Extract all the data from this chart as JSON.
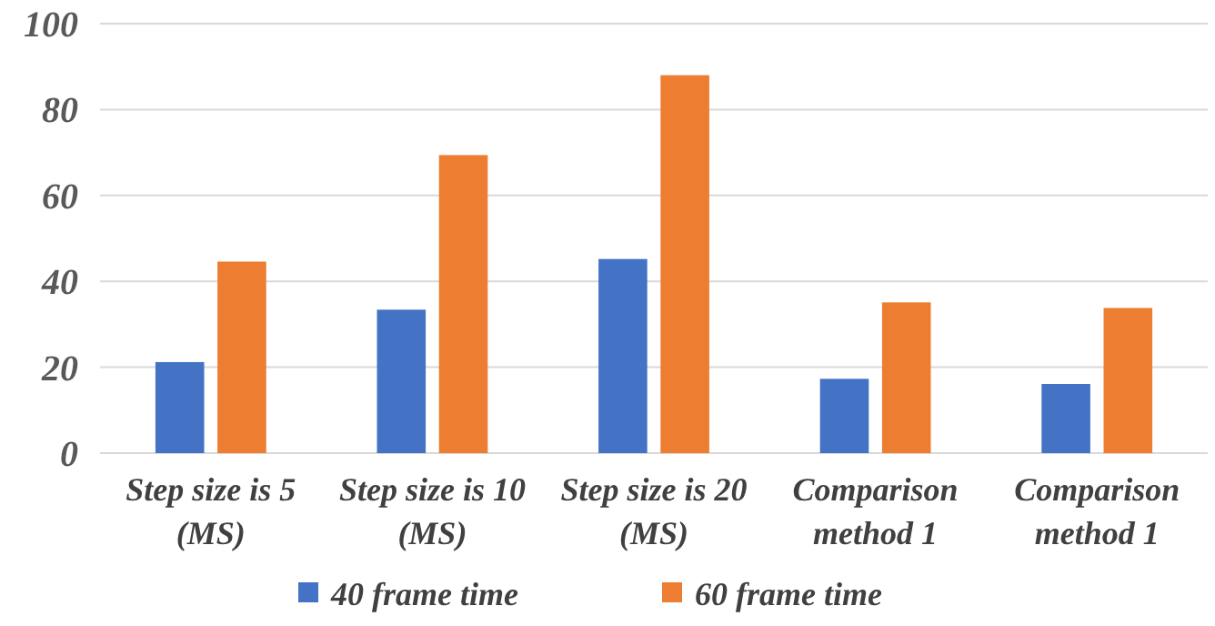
{
  "chart_data": {
    "type": "bar",
    "categories": [
      "Step size is 5 (MS)",
      "Step size is 10 (MS)",
      "Step size is 20 (MS)",
      "Comparison method 1",
      "Comparison method 1"
    ],
    "series": [
      {
        "name": "40 frame time",
        "color": "#4472c4",
        "values": [
          21.2,
          33.4,
          45.2,
          17.3,
          16.1
        ]
      },
      {
        "name": "60 frame time",
        "color": "#ed7d31",
        "values": [
          44.6,
          69.4,
          88.0,
          35.1,
          33.8
        ]
      }
    ],
    "ylim": [
      0,
      100
    ],
    "yticks": [
      0,
      20,
      40,
      60,
      80,
      100
    ],
    "grid": "y",
    "legend": "bottom"
  }
}
